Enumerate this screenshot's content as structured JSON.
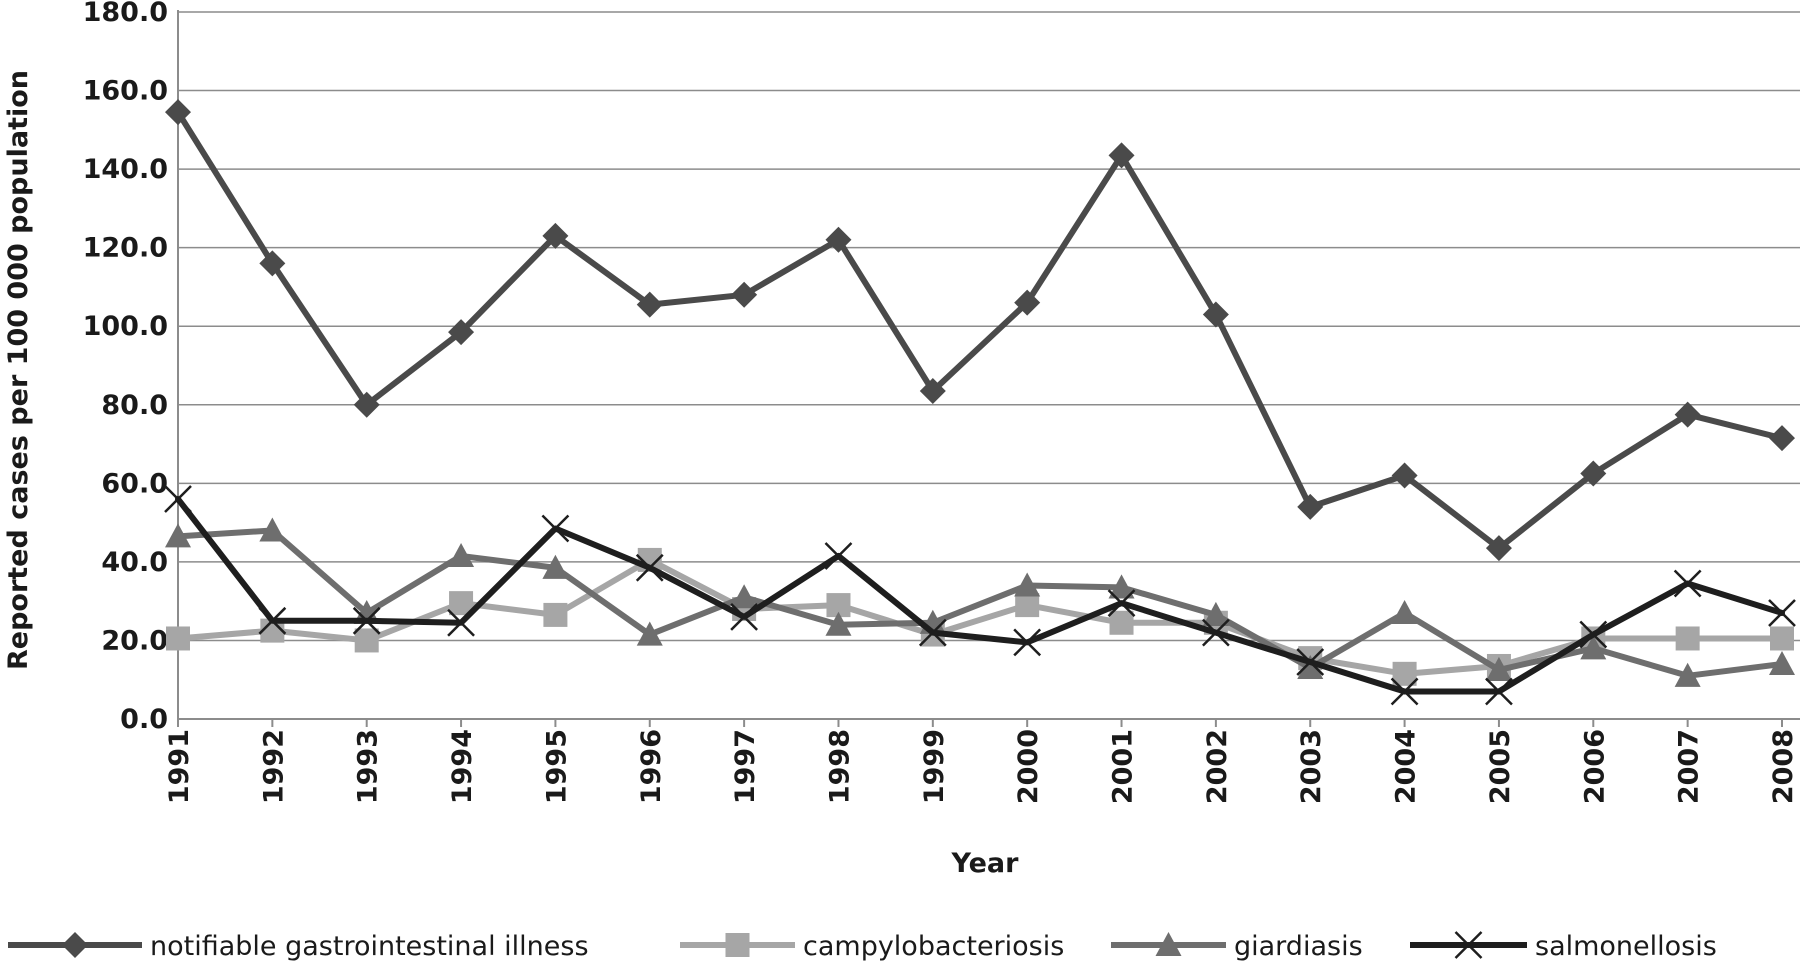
{
  "chart_data": {
    "type": "line",
    "title": "",
    "xlabel": "Year",
    "ylabel": "Reported cases per 100 000 population",
    "ylim": [
      0,
      180
    ],
    "y_ticks": [
      "0.0",
      "20.0",
      "40.0",
      "60.0",
      "80.0",
      "100.0",
      "120.0",
      "140.0",
      "160.0",
      "180.0"
    ],
    "grid": true,
    "legend_position": "bottom",
    "categories": [
      "1991",
      "1992",
      "1993",
      "1994",
      "1995",
      "1996",
      "1997",
      "1998",
      "1999",
      "2000",
      "2001",
      "2002",
      "2003",
      "2004",
      "2005",
      "2006",
      "2007",
      "2008"
    ],
    "series": [
      {
        "name": "notifiable gastrointestinal illness",
        "color": "#4a4a4a",
        "marker": "diamond",
        "values": [
          154.5,
          116,
          80,
          98.5,
          123,
          105.5,
          108,
          122,
          83.5,
          106,
          143.5,
          103,
          54,
          62,
          43.5,
          62.5,
          77.5,
          71.5
        ]
      },
      {
        "name": "campylobacteriosis",
        "color": "#a6a6a6",
        "marker": "square",
        "values": [
          20.5,
          22.5,
          20,
          29.5,
          26.5,
          40.5,
          28,
          29,
          21.5,
          29,
          24.5,
          24.5,
          15.5,
          11.5,
          13.5,
          20.5,
          20.5,
          20.5
        ]
      },
      {
        "name": "giardiasis",
        "color": "#6e6e6e",
        "marker": "triangle",
        "values": [
          46.5,
          48,
          27,
          41.5,
          38.5,
          21.5,
          31,
          24,
          24.5,
          34,
          33.5,
          26.5,
          13,
          27,
          12.5,
          18,
          11,
          14
        ]
      },
      {
        "name": "salmonellosis",
        "color": "#1e1e1e",
        "marker": "x",
        "values": [
          56,
          25,
          25,
          24.5,
          48.5,
          38.5,
          26,
          41.5,
          22,
          19.5,
          29.5,
          22,
          14.5,
          7,
          7,
          21.5,
          34.5,
          27
        ]
      }
    ]
  }
}
